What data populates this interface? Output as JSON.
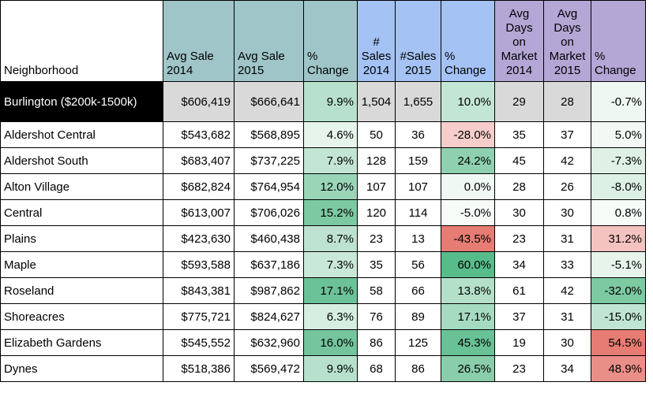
{
  "headers": {
    "neighborhood": "Neighborhood",
    "avg_sale_2014": [
      "Avg Sale",
      "2014"
    ],
    "avg_sale_2015": [
      "Avg Sale",
      "2015"
    ],
    "pct_change_sale": [
      "%",
      "Change"
    ],
    "sales_2014": [
      "#",
      "Sales",
      "2014"
    ],
    "sales_2015": [
      "#Sales",
      "2015"
    ],
    "pct_change_sales": [
      "%",
      "Change"
    ],
    "dom_2014": [
      "Avg",
      "Days",
      "on",
      "Market",
      "2014"
    ],
    "dom_2015": [
      "Avg",
      "Days",
      "on",
      "Market",
      "2015"
    ],
    "pct_change_dom": [
      "%",
      "Change"
    ]
  },
  "header_colors": {
    "teal": "#9fc5c8",
    "blue": "#a4c2f4",
    "purple": "#b4a7d6"
  },
  "rows": [
    {
      "name": "Burlington ($200k-1500k)",
      "avg2014": "$606,419",
      "avg2015": "$666,641",
      "chg_avg": "9.9%",
      "s2014": "1,504",
      "s2015": "1,655",
      "chg_s": "10.0%",
      "d2014": "29",
      "d2015": "28",
      "chg_d": "-0.7%",
      "colors": {
        "chg_avg": "#b7e1cd",
        "chg_s": "#c3e6d4",
        "chg_d": "#eef7f2"
      }
    },
    {
      "name": "Aldershot Central",
      "avg2014": "$543,682",
      "avg2015": "$568,895",
      "chg_avg": "4.6%",
      "s2014": "50",
      "s2015": "36",
      "chg_s": "-28.0%",
      "d2014": "35",
      "d2015": "37",
      "chg_d": "5.0%",
      "colors": {
        "chg_avg": "#e6f4ec",
        "chg_s": "#f6cdcb",
        "chg_d": "#f2f9f5"
      }
    },
    {
      "name": "Aldershot South",
      "avg2014": "$683,407",
      "avg2015": "$737,225",
      "chg_avg": "7.9%",
      "s2014": "128",
      "s2015": "159",
      "chg_s": "24.2%",
      "d2014": "45",
      "d2015": "42",
      "chg_d": "-7.3%",
      "colors": {
        "chg_avg": "#c3e6d4",
        "chg_s": "#8fd0b0",
        "chg_d": "#dff1e7"
      }
    },
    {
      "name": "Alton Village",
      "avg2014": "$682,824",
      "avg2015": "$764,954",
      "chg_avg": "12.0%",
      "s2014": "107",
      "s2015": "107",
      "chg_s": "0.0%",
      "d2014": "28",
      "d2015": "26",
      "chg_d": "-8.0%",
      "colors": {
        "chg_avg": "#9ad5b8",
        "chg_s": "#f0f8f3",
        "chg_d": "#ddf0e6"
      }
    },
    {
      "name": "Central",
      "avg2014": "$613,007",
      "avg2015": "$706,026",
      "chg_avg": "15.2%",
      "s2014": "120",
      "s2015": "114",
      "chg_s": "-5.0%",
      "d2014": "30",
      "d2015": "30",
      "chg_d": "0.8%",
      "colors": {
        "chg_avg": "#7cc9a2",
        "chg_s": "#f6fbf8",
        "chg_d": "#f5fbf7"
      }
    },
    {
      "name": "Plains",
      "avg2014": "$423,630",
      "avg2015": "$460,438",
      "chg_avg": "8.7%",
      "s2014": "23",
      "s2015": "13",
      "chg_s": "-43.5%",
      "d2014": "23",
      "d2015": "31",
      "chg_d": "31.2%",
      "colors": {
        "chg_avg": "#bde3d0",
        "chg_s": "#e67c73",
        "chg_d": "#f4c2bf"
      }
    },
    {
      "name": "Maple",
      "avg2014": "$593,588",
      "avg2015": "$637,186",
      "chg_avg": "7.3%",
      "s2014": "35",
      "s2015": "56",
      "chg_s": "60.0%",
      "d2014": "34",
      "d2015": "33",
      "chg_d": "-5.1%",
      "colors": {
        "chg_avg": "#c9e9d8",
        "chg_s": "#57bb8a",
        "chg_d": "#e6f4ec"
      }
    },
    {
      "name": "Roseland",
      "avg2014": "$843,381",
      "avg2015": "$987,862",
      "chg_avg": "17.1%",
      "s2014": "58",
      "s2015": "66",
      "chg_s": "13.8%",
      "d2014": "61",
      "d2015": "42",
      "chg_d": "-32.0%",
      "colors": {
        "chg_avg": "#6cc298",
        "chg_s": "#b4e0ca",
        "chg_d": "#7cc9a2"
      }
    },
    {
      "name": "Shoreacres",
      "avg2014": "$775,721",
      "avg2015": "$824,627",
      "chg_avg": "6.3%",
      "s2014": "76",
      "s2015": "89",
      "chg_s": "17.1%",
      "d2014": "37",
      "d2015": "31",
      "chg_d": "-15.0%",
      "colors": {
        "chg_avg": "#d5eee1",
        "chg_s": "#a6dac1",
        "chg_d": "#c0e5d2"
      }
    },
    {
      "name": "Elizabeth Gardens",
      "avg2014": "$545,552",
      "avg2015": "$632,960",
      "chg_avg": "16.0%",
      "s2014": "86",
      "s2015": "125",
      "chg_s": "45.3%",
      "d2014": "19",
      "d2015": "30",
      "chg_d": "54.5%",
      "colors": {
        "chg_avg": "#74c59d",
        "chg_s": "#69c196",
        "chg_d": "#e67c73"
      }
    },
    {
      "name": "Dynes",
      "avg2014": "$518,386",
      "avg2015": "$569,472",
      "chg_avg": "9.9%",
      "s2014": "68",
      "s2015": "86",
      "chg_s": "26.5%",
      "d2014": "23",
      "d2015": "34",
      "chg_d": "48.9%",
      "colors": {
        "chg_avg": "#b7e1cd",
        "chg_s": "#89cdab",
        "chg_d": "#ea8f88"
      }
    }
  ]
}
